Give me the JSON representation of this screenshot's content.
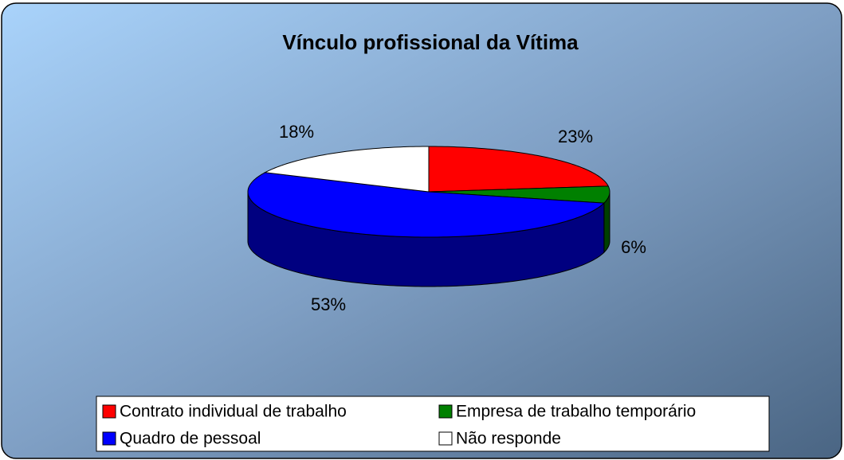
{
  "chart_data": {
    "type": "pie",
    "title": "Vínculo profissional da Vítima",
    "categories": [
      "Contrato individual de trabalho",
      "Empresa de trabalho temporário",
      "Quadro de pessoal",
      "Não responde"
    ],
    "values": [
      23,
      6,
      53,
      18
    ],
    "value_labels": [
      "23%",
      "6%",
      "53%",
      "18%"
    ],
    "colors": [
      "#ff0000",
      "#008000",
      "#0000ff",
      "#ffffff"
    ],
    "legend": "bottom"
  }
}
